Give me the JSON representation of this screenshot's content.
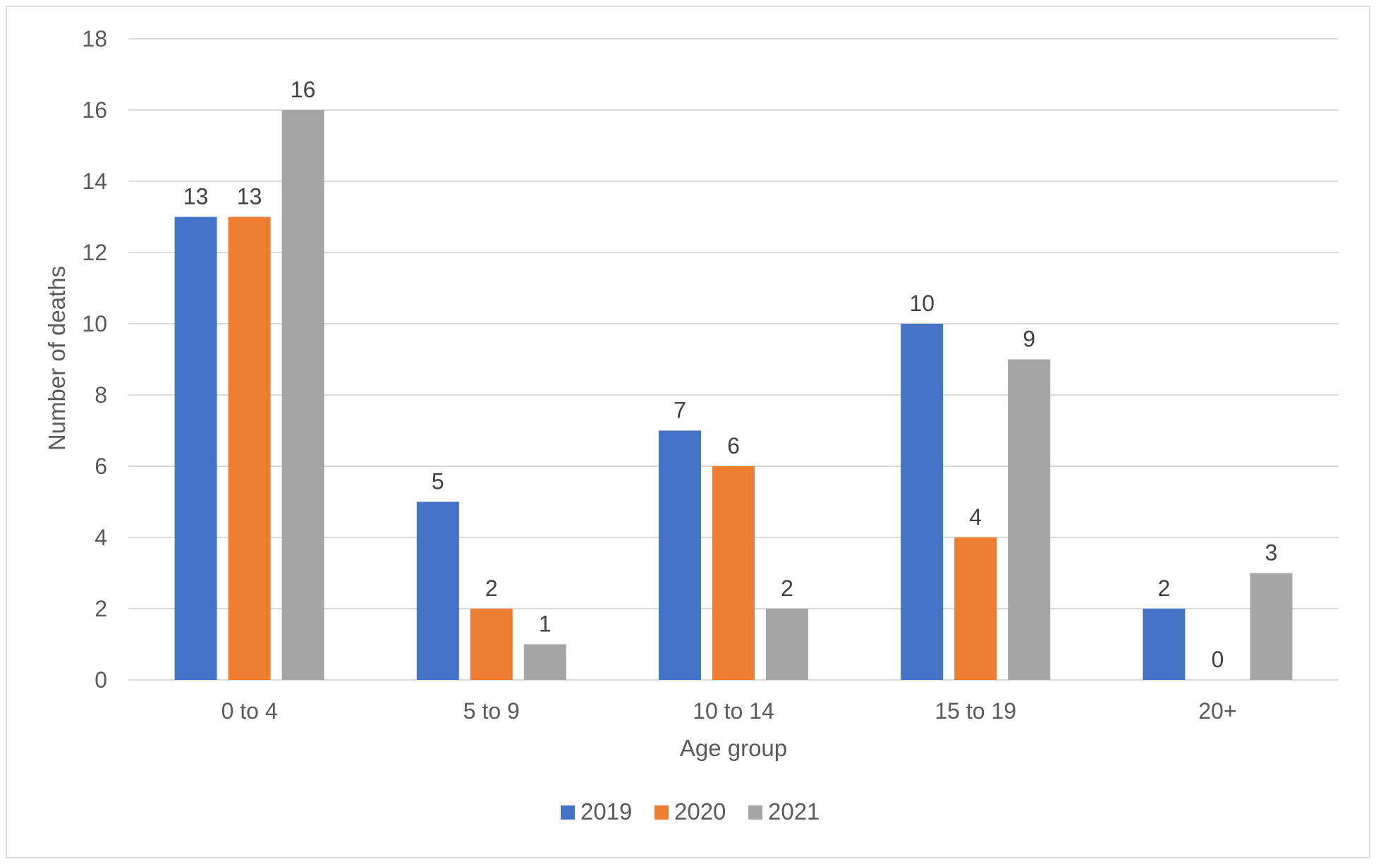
{
  "chart_data": {
    "type": "bar",
    "title": "",
    "xlabel": "Age group",
    "ylabel": "Number of deaths",
    "categories": [
      "0 to 4",
      "5 to 9",
      "10 to 14",
      "15 to 19",
      "20+"
    ],
    "series": [
      {
        "name": "2019",
        "color": "#4472c4",
        "values": [
          13,
          5,
          7,
          10,
          2
        ]
      },
      {
        "name": "2020",
        "color": "#ed7d31",
        "values": [
          13,
          2,
          6,
          4,
          0
        ]
      },
      {
        "name": "2021",
        "color": "#a5a5a5",
        "values": [
          16,
          1,
          2,
          9,
          3
        ]
      }
    ],
    "ylim": [
      0,
      18
    ],
    "yticks": [
      0,
      2,
      4,
      6,
      8,
      10,
      12,
      14,
      16,
      18
    ],
    "grid": true,
    "gridline_color": "#d9d9d9",
    "legend_position": "bottom",
    "data_labels": true
  }
}
